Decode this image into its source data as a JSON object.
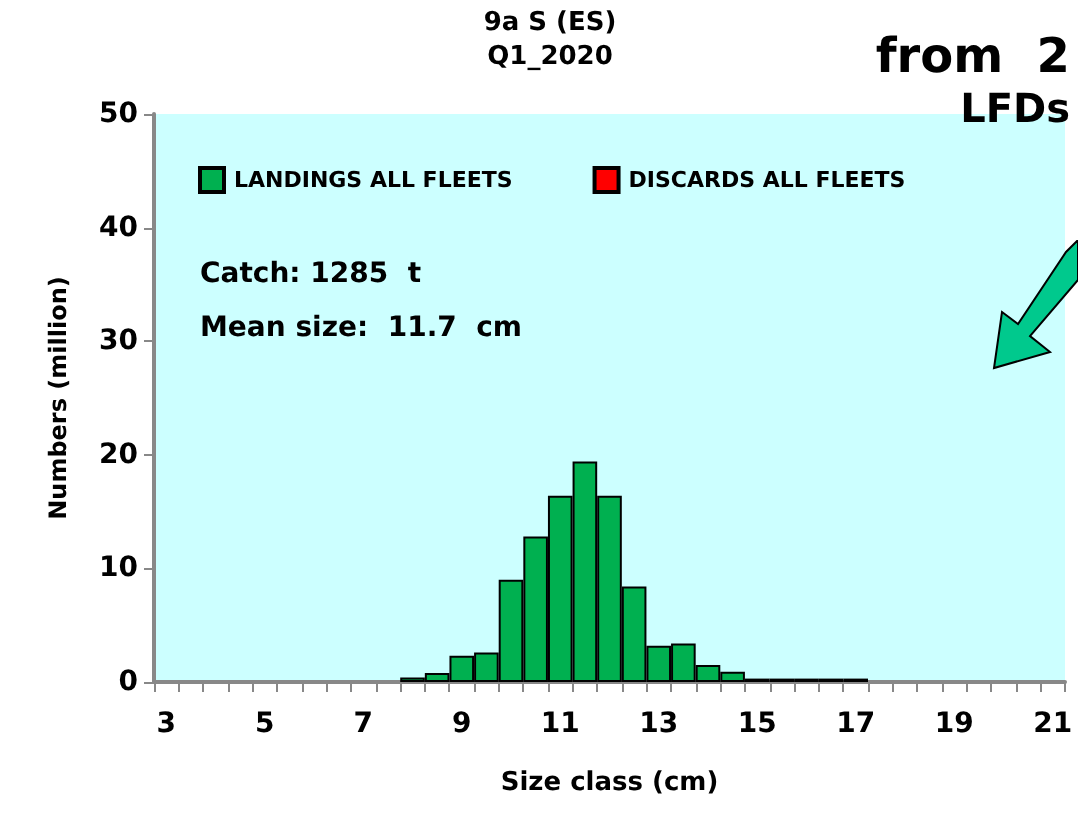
{
  "chart_data": {
    "type": "bar",
    "title": "9a S (ES)",
    "subtitle": "Q1_2020",
    "xlabel": "Size class (cm)",
    "ylabel": "Numbers (million)",
    "annotations": [
      "Catch: 1285  t",
      "Mean size:  11.7  cm",
      "from  2",
      "LFDs"
    ],
    "categories": [
      "3",
      null,
      null,
      null,
      "5",
      null,
      null,
      null,
      "7",
      null,
      null,
      null,
      "9",
      null,
      null,
      null,
      "11",
      null,
      null,
      null,
      "13",
      null,
      null,
      null,
      "15",
      null,
      null,
      null,
      "17",
      null,
      null,
      null,
      "19",
      null,
      null,
      null,
      "21"
    ],
    "series": [
      {
        "name": "LANDINGS ALL FLEETS",
        "color": "#00b050",
        "values": [
          null,
          null,
          null,
          null,
          null,
          null,
          null,
          null,
          null,
          null,
          0.4,
          0.8,
          2.3,
          2.6,
          9.0,
          12.8,
          16.4,
          19.4,
          16.4,
          8.4,
          3.2,
          3.4,
          1.5,
          0.9,
          0.3,
          0.3,
          0.3,
          0.3,
          0.3,
          null,
          null,
          null,
          null,
          null,
          null,
          null,
          null
        ]
      },
      {
        "name": "DISCARDS ALL FLEETS",
        "color": "#ff0000",
        "values": [
          null,
          null,
          null,
          null,
          null,
          null,
          null,
          null,
          null,
          null,
          null,
          null,
          null,
          null,
          null,
          null,
          null,
          null,
          null,
          null,
          null,
          null,
          null,
          null,
          null,
          null,
          null,
          null,
          null,
          null,
          null,
          null,
          null,
          null,
          null,
          null,
          null
        ]
      }
    ],
    "stacked": true,
    "ylim": [
      0,
      50
    ],
    "yticks": [
      0,
      10,
      20,
      30,
      40,
      50
    ],
    "grid": false,
    "legend": "top"
  }
}
